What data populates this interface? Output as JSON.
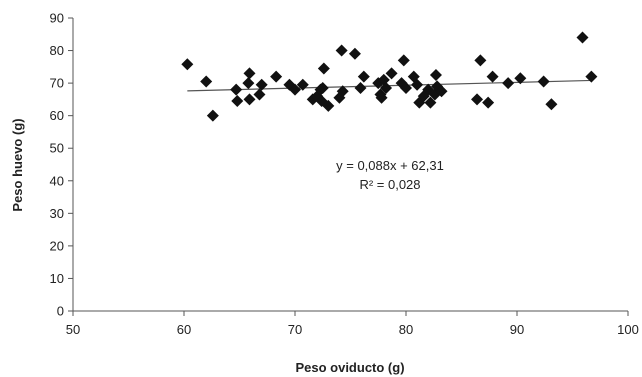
{
  "chart_data": {
    "type": "scatter",
    "title": "",
    "xlabel": "Peso oviducto (g)",
    "ylabel": "Peso huevo (g)",
    "xlim": [
      50,
      100
    ],
    "ylim": [
      0,
      90
    ],
    "xticks": [
      50,
      60,
      70,
      80,
      90,
      100
    ],
    "yticks": [
      0,
      10,
      20,
      30,
      40,
      50,
      60,
      70,
      80,
      90
    ],
    "grid": false,
    "legend": "none",
    "marker": "diamond",
    "marker_color": "#111111",
    "trendline": {
      "type": "linear",
      "slope": 0.088,
      "intercept": 62.31,
      "color": "#555555"
    },
    "annotations": [
      "y = 0,088x + 62,31",
      "R² = 0,028"
    ],
    "points": [
      [
        60.3,
        75.8
      ],
      [
        62.0,
        70.5
      ],
      [
        62.6,
        60.0
      ],
      [
        64.7,
        68.0
      ],
      [
        64.8,
        64.5
      ],
      [
        65.8,
        70.0
      ],
      [
        65.9,
        73.0
      ],
      [
        65.9,
        65.0
      ],
      [
        66.8,
        66.5
      ],
      [
        67.0,
        69.5
      ],
      [
        68.3,
        72.0
      ],
      [
        69.5,
        69.5
      ],
      [
        70.0,
        68.0
      ],
      [
        70.7,
        69.5
      ],
      [
        71.6,
        65.0
      ],
      [
        72.0,
        66.0
      ],
      [
        72.3,
        68.0
      ],
      [
        72.4,
        64.5
      ],
      [
        72.5,
        68.5
      ],
      [
        72.6,
        74.5
      ],
      [
        73.0,
        63.0
      ],
      [
        74.0,
        65.5
      ],
      [
        74.2,
        80.0
      ],
      [
        74.3,
        67.5
      ],
      [
        75.4,
        79.0
      ],
      [
        75.9,
        68.5
      ],
      [
        76.2,
        72.0
      ],
      [
        77.5,
        70.0
      ],
      [
        77.7,
        66.5
      ],
      [
        77.8,
        65.5
      ],
      [
        78.0,
        71.0
      ],
      [
        78.2,
        68.5
      ],
      [
        78.7,
        73.0
      ],
      [
        79.6,
        70.0
      ],
      [
        79.8,
        77.0
      ],
      [
        80.0,
        68.5
      ],
      [
        80.7,
        72.0
      ],
      [
        81.0,
        69.5
      ],
      [
        81.2,
        64.0
      ],
      [
        81.6,
        66.0
      ],
      [
        82.0,
        68.0
      ],
      [
        82.2,
        64.0
      ],
      [
        82.6,
        66.5
      ],
      [
        82.7,
        72.5
      ],
      [
        82.8,
        69.0
      ],
      [
        83.2,
        67.5
      ],
      [
        86.4,
        65.0
      ],
      [
        86.7,
        77.0
      ],
      [
        87.4,
        64.0
      ],
      [
        87.8,
        72.0
      ],
      [
        89.2,
        70.0
      ],
      [
        90.3,
        71.5
      ],
      [
        92.4,
        70.5
      ],
      [
        93.1,
        63.5
      ],
      [
        95.9,
        84.0
      ],
      [
        96.7,
        72.0
      ]
    ]
  }
}
